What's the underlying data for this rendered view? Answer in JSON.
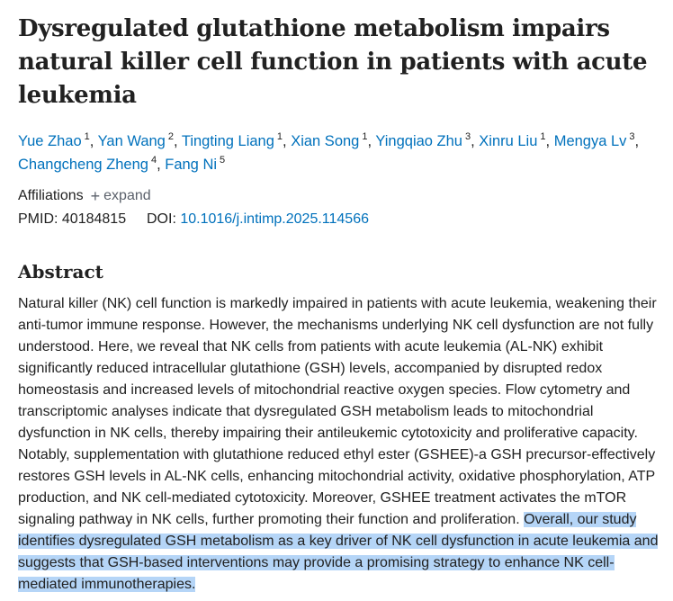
{
  "article": {
    "title": "Dysregulated glutathione metabolism impairs natural killer cell function in patients with acute leukemia",
    "authors": [
      {
        "name": "Yue Zhao",
        "aff": "1"
      },
      {
        "name": "Yan Wang",
        "aff": "2"
      },
      {
        "name": "Tingting Liang",
        "aff": "1"
      },
      {
        "name": "Xian Song",
        "aff": "1"
      },
      {
        "name": "Yingqiao Zhu",
        "aff": "3"
      },
      {
        "name": "Xinru Liu",
        "aff": "1"
      },
      {
        "name": "Mengya Lv",
        "aff": "3"
      },
      {
        "name": "Changcheng Zheng",
        "aff": "4"
      },
      {
        "name": "Fang Ni",
        "aff": "5"
      }
    ],
    "affiliations_label": "Affiliations",
    "expand_icon": "plus-icon",
    "expand_label": "expand",
    "pmid_label": "PMID:",
    "pmid": "40184815",
    "doi_label": "DOI:",
    "doi": "10.1016/j.intimp.2025.114566",
    "abstract_heading": "Abstract",
    "abstract_main": "Natural killer (NK) cell function is markedly impaired in patients with acute leukemia, weakening their anti-tumor immune response. However, the mechanisms underlying NK cell dysfunction are not fully understood. Here, we reveal that NK cells from patients with acute leukemia (AL-NK) exhibit significantly reduced intracellular glutathione (GSH) levels, accompanied by disrupted redox homeostasis and increased levels of mitochondrial reactive oxygen species. Flow cytometry and transcriptomic analyses indicate that dysregulated GSH metabolism leads to mitochondrial dysfunction in NK cells, thereby impairing their antileukemic cytotoxicity and proliferative capacity. Notably, supplementation with glutathione reduced ethyl ester (GSHEE)-a GSH precursor-effectively restores GSH levels in AL-NK cells, enhancing mitochondrial activity, oxidative phosphorylation, ATP production, and NK cell-mediated cytotoxicity. Moreover, GSHEE treatment activates the mTOR signaling pathway in NK cells, further promoting their function and proliferation. ",
    "abstract_selected": "Overall, our study identifies dysregulated GSH metabolism as a key driver of NK cell dysfunction in acute leukemia and suggests that GSH-based interventions may provide a promising strategy to enhance NK cell-mediated immunotherapies.",
    "selection_color": "#b5d5f7",
    "link_color": "#0071bc"
  }
}
